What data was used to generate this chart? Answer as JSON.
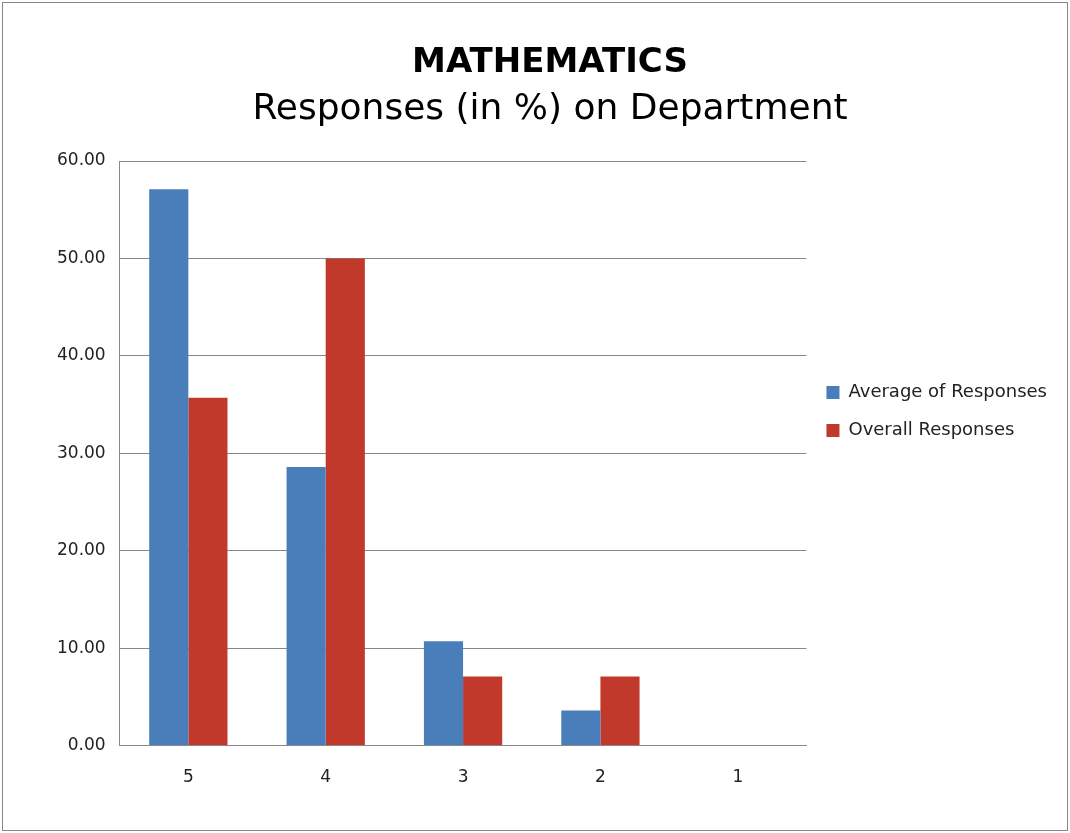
{
  "chart_data": {
    "type": "bar",
    "title": "MATHEMATICS",
    "subtitle": "Responses (in %) on Department",
    "categories": [
      "5",
      "4",
      "3",
      "2",
      "1"
    ],
    "series": [
      {
        "name": "Average of Responses",
        "color": "#4a7ebb",
        "values": [
          57.1,
          28.6,
          10.7,
          3.6,
          0
        ]
      },
      {
        "name": "Overall Responses",
        "color": "#c0392b",
        "values": [
          35.7,
          50.0,
          7.1,
          7.1,
          0
        ]
      }
    ],
    "ylim": [
      0,
      60
    ],
    "yticks": [
      {
        "value": 0,
        "label": "0.00"
      },
      {
        "value": 10,
        "label": "10.00"
      },
      {
        "value": 20,
        "label": "20.00"
      },
      {
        "value": 30,
        "label": "30.00"
      },
      {
        "value": 40,
        "label": "40.00"
      },
      {
        "value": 50,
        "label": "50.00"
      },
      {
        "value": 60,
        "label": "60.00"
      }
    ],
    "grid": "y",
    "legend": "right"
  }
}
